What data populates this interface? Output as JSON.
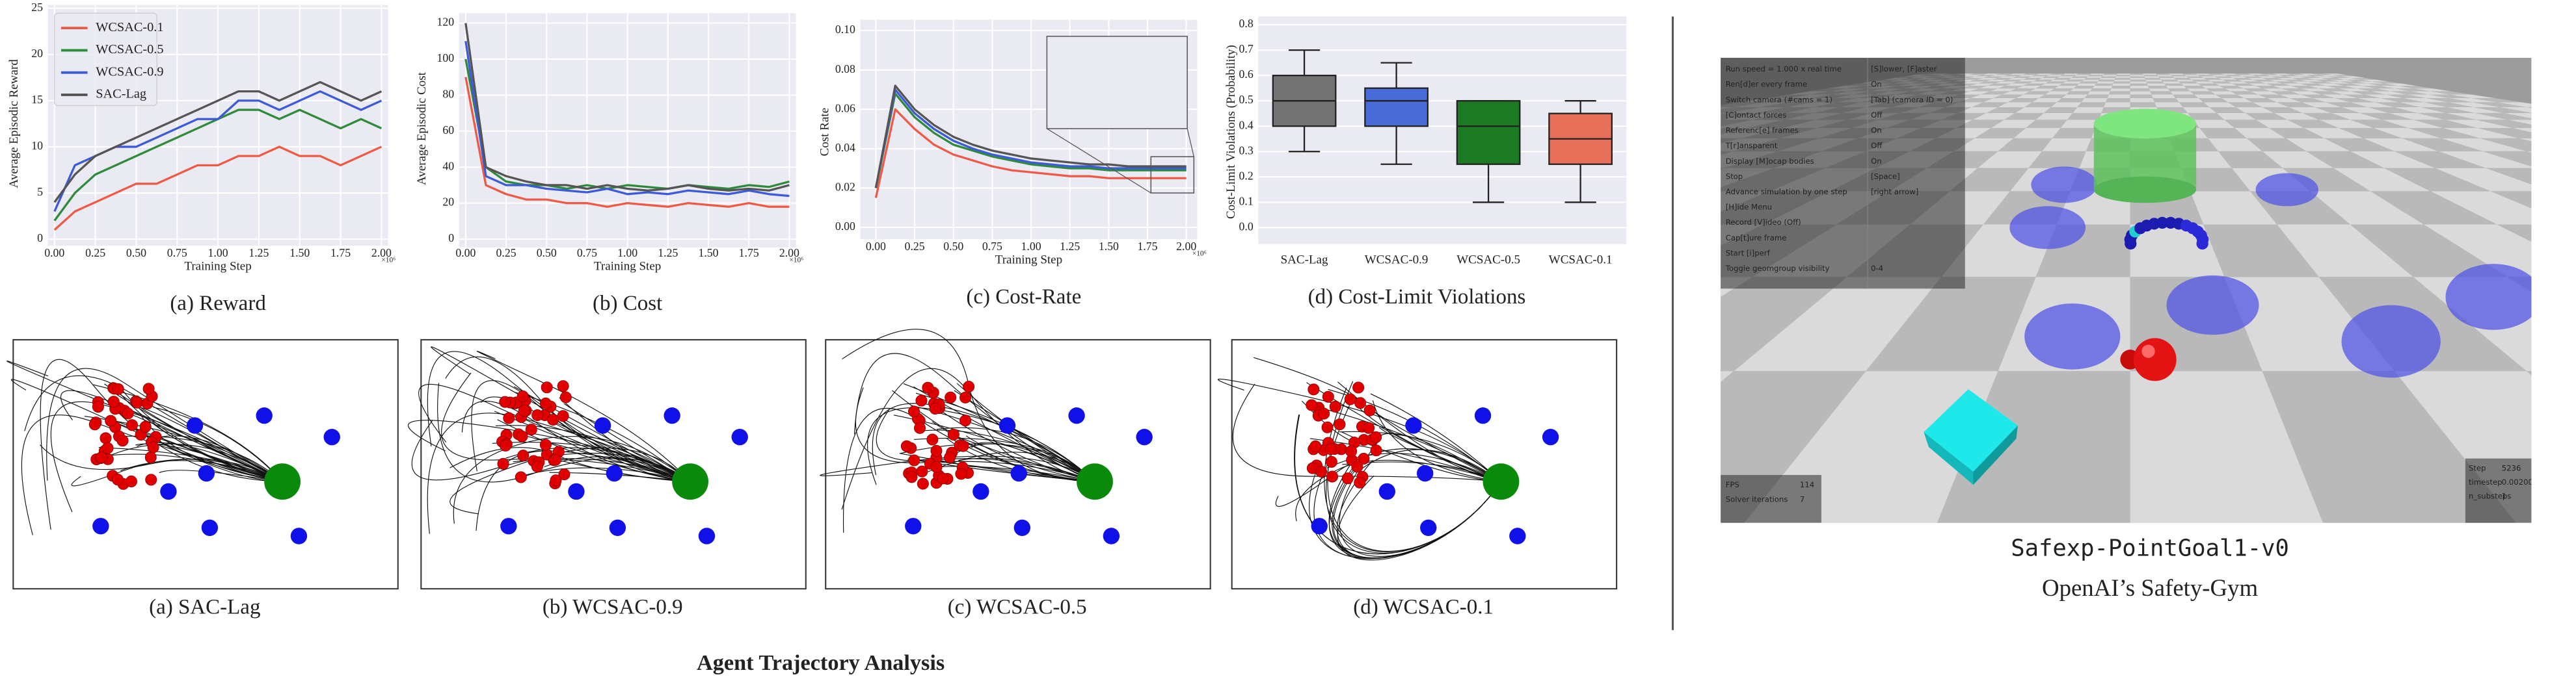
{
  "chart_data": [
    {
      "type": "line",
      "caption": "(a) Reward",
      "xlabel": "Training Step",
      "ylabel": "Average Episodic Reward",
      "x_exponent": "×10⁶",
      "x": [
        0,
        0.125,
        0.25,
        0.375,
        0.5,
        0.625,
        0.75,
        0.875,
        1.0,
        1.125,
        1.25,
        1.375,
        1.5,
        1.625,
        1.75,
        1.875,
        2.0
      ],
      "series": [
        {
          "name": "WCSAC-0.1",
          "color": "#ee5a45",
          "values": [
            1,
            3,
            4,
            5,
            6,
            6,
            7,
            8,
            8,
            9,
            9,
            10,
            9,
            9,
            8,
            9,
            10
          ]
        },
        {
          "name": "WCSAC-0.5",
          "color": "#2f8a3c",
          "values": [
            2,
            5,
            7,
            8,
            9,
            10,
            11,
            12,
            13,
            14,
            14,
            13,
            14,
            13,
            12,
            13,
            12
          ]
        },
        {
          "name": "WCSAC-0.9",
          "color": "#3d5bd8",
          "values": [
            3,
            8,
            9,
            10,
            10,
            11,
            12,
            13,
            13,
            15,
            15,
            14,
            15,
            16,
            15,
            14,
            15
          ]
        },
        {
          "name": "SAC-Lag",
          "color": "#555555",
          "values": [
            4,
            7,
            9,
            10,
            11,
            12,
            13,
            14,
            15,
            16,
            16,
            15,
            16,
            17,
            16,
            15,
            16
          ]
        }
      ],
      "xlim": [
        0,
        2
      ],
      "xticks": [
        {
          "value": 0,
          "label": "0.00"
        },
        0.25,
        {
          "value": 0.5,
          "label": "0.50"
        },
        0.75,
        {
          "value": 1,
          "label": "1.00"
        },
        1.25,
        {
          "value": 1.5,
          "label": "1.50"
        },
        1.75,
        {
          "value": 2,
          "label": "2.00"
        }
      ],
      "ylim": [
        0,
        25
      ],
      "yticks": [
        0,
        5,
        10,
        15,
        20,
        25
      ],
      "grid": true,
      "legend": "upper left"
    },
    {
      "type": "line",
      "caption": "(b) Cost",
      "xlabel": "Training Step",
      "ylabel": "Average Episodic Cost",
      "x_exponent": "×10⁶",
      "x": [
        0,
        0.125,
        0.25,
        0.375,
        0.5,
        0.625,
        0.75,
        0.875,
        1.0,
        1.125,
        1.25,
        1.375,
        1.5,
        1.625,
        1.75,
        1.875,
        2.0
      ],
      "series": [
        {
          "name": "WCSAC-0.1",
          "color": "#ee5a45",
          "values": [
            90,
            30,
            25,
            22,
            22,
            20,
            20,
            18,
            20,
            19,
            18,
            20,
            19,
            18,
            20,
            18,
            18
          ]
        },
        {
          "name": "WCSAC-0.5",
          "color": "#2f8a3c",
          "values": [
            100,
            40,
            32,
            30,
            30,
            28,
            30,
            28,
            30,
            29,
            28,
            30,
            29,
            28,
            30,
            29,
            32
          ]
        },
        {
          "name": "WCSAC-0.9",
          "color": "#3d5bd8",
          "values": [
            110,
            35,
            30,
            30,
            28,
            27,
            26,
            28,
            25,
            26,
            25,
            27,
            26,
            25,
            27,
            25,
            24
          ]
        },
        {
          "name": "SAC-Lag",
          "color": "#555555",
          "values": [
            120,
            40,
            35,
            32,
            30,
            30,
            28,
            30,
            28,
            27,
            28,
            30,
            28,
            27,
            28,
            27,
            30
          ]
        }
      ],
      "xlim": [
        0,
        2
      ],
      "xticks": [
        {
          "value": 0,
          "label": "0.00"
        },
        0.25,
        {
          "value": 0.5,
          "label": "0.50"
        },
        0.75,
        {
          "value": 1,
          "label": "1.00"
        },
        1.25,
        {
          "value": 1.5,
          "label": "1.50"
        },
        1.75,
        {
          "value": 2,
          "label": "2.00"
        }
      ],
      "ylim": [
        0,
        120
      ],
      "yticks": [
        0,
        20,
        40,
        60,
        80,
        100,
        120
      ],
      "grid": true
    },
    {
      "type": "line",
      "caption": "(c) Cost-Rate",
      "xlabel": "Training Step",
      "ylabel": "Cost Rate",
      "x_exponent": "×10⁶",
      "x": [
        0,
        0.125,
        0.25,
        0.375,
        0.5,
        0.625,
        0.75,
        0.875,
        1.0,
        1.125,
        1.25,
        1.375,
        1.5,
        1.625,
        1.75,
        1.875,
        2.0
      ],
      "series": [
        {
          "name": "WCSAC-0.1",
          "color": "#ee5a45",
          "values": [
            0.015,
            0.06,
            0.05,
            0.042,
            0.037,
            0.034,
            0.031,
            0.029,
            0.028,
            0.027,
            0.026,
            0.026,
            0.025,
            0.025,
            0.025,
            0.025,
            0.025
          ]
        },
        {
          "name": "WCSAC-0.5",
          "color": "#2f8a3c",
          "values": [
            0.02,
            0.068,
            0.056,
            0.048,
            0.042,
            0.039,
            0.036,
            0.034,
            0.032,
            0.031,
            0.03,
            0.03,
            0.029,
            0.029,
            0.029,
            0.029,
            0.029
          ]
        },
        {
          "name": "WCSAC-0.9",
          "color": "#3d5bd8",
          "values": [
            0.02,
            0.07,
            0.058,
            0.05,
            0.044,
            0.04,
            0.037,
            0.035,
            0.033,
            0.032,
            0.031,
            0.031,
            0.03,
            0.03,
            0.03,
            0.03,
            0.03
          ]
        },
        {
          "name": "SAC-Lag",
          "color": "#555555",
          "values": [
            0.02,
            0.072,
            0.06,
            0.052,
            0.046,
            0.042,
            0.039,
            0.037,
            0.035,
            0.034,
            0.033,
            0.032,
            0.032,
            0.031,
            0.031,
            0.031,
            0.031
          ]
        }
      ],
      "xlim": [
        -0.1,
        2.07
      ],
      "xticks": [
        {
          "value": 0,
          "label": "0.00"
        },
        0.25,
        {
          "value": 0.5,
          "label": "0.50"
        },
        0.75,
        {
          "value": 1,
          "label": "1.00"
        },
        1.25,
        {
          "value": 1.5,
          "label": "1.50"
        },
        1.75,
        {
          "value": 2,
          "label": "2.00"
        }
      ],
      "ylim": [
        -0.006,
        0.103
      ],
      "yticks": [
        {
          "value": 0,
          "label": "0.00"
        },
        0.02,
        0.04,
        0.06,
        0.08,
        {
          "value": 0.1,
          "label": "0.10"
        }
      ],
      "grid": true
    },
    {
      "type": "box",
      "caption": "(d) Cost-Limit Violations",
      "ylabel": "Cost-Limit Violations (Probability)",
      "categories": [
        "SAC-Lag",
        "WCSAC-0.9",
        "WCSAC-0.5",
        "WCSAC-0.1"
      ],
      "colors": [
        "#737373",
        "#4a6cd8",
        "#1c7a22",
        "#e8705a"
      ],
      "boxes": [
        {
          "min": 0.3,
          "q1": 0.4,
          "median": 0.5,
          "q3": 0.6,
          "max": 0.7
        },
        {
          "min": 0.25,
          "q1": 0.4,
          "median": 0.5,
          "q3": 0.55,
          "max": 0.65
        },
        {
          "min": 0.1,
          "q1": 0.25,
          "median": 0.4,
          "q3": 0.5,
          "max": 0.5
        },
        {
          "min": 0.1,
          "q1": 0.25,
          "median": 0.35,
          "q3": 0.45,
          "max": 0.5
        }
      ],
      "ylim": [
        -0.065,
        0.8
      ],
      "yticks": [
        {
          "value": 0,
          "label": "0.0"
        },
        0.1,
        0.2,
        0.3,
        0.4,
        0.5,
        0.6,
        0.7,
        0.8
      ],
      "grid": true
    }
  ],
  "trajectory": {
    "title": "Agent Trajectory Analysis",
    "captions": [
      "(a) SAC-Lag",
      "(b) WCSAC-0.9",
      "(c) WCSAC-0.5",
      "(d) WCSAC-0.1"
    ]
  },
  "simulator": {
    "env": "Safexp-PointGoal1-v0",
    "caption": "OpenAI’s Safety-Gym",
    "menu": [
      [
        "Run speed = 1.000 x real time",
        "[S]lower, [F]aster"
      ],
      [
        "Ren[d]er every frame",
        "On"
      ],
      [
        "Switch camera (#cams = 1)",
        "[Tab] (camera ID = 0)"
      ],
      [
        "[C]ontact forces",
        "Off"
      ],
      [
        "Referenc[e] frames",
        "On"
      ],
      [
        "T[r]ansparent",
        "Off"
      ],
      [
        "Display [M]ocap bodies",
        "On"
      ],
      [
        "Stop",
        "[Space]"
      ],
      [
        "Advance simulation by one step",
        "[right arrow]"
      ],
      [
        "[H]ide Menu"
      ],
      [
        "Record [V]ideo (Off)"
      ],
      [
        "Cap[t]ure frame"
      ],
      [
        "Start [i]perf"
      ],
      [
        "Toggle geomgroup visibility",
        "0-4"
      ]
    ],
    "stats_left": [
      [
        "FPS",
        "114"
      ],
      [
        "Solver iterations",
        "7"
      ]
    ],
    "stats_right": [
      [
        "Step",
        "5236"
      ],
      [
        "timestep",
        "0.00200"
      ],
      [
        "n_substeps",
        "1"
      ]
    ]
  }
}
